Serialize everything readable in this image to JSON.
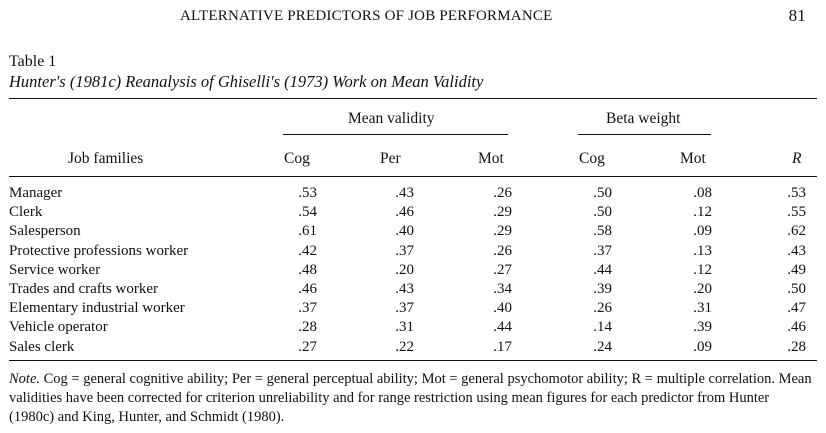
{
  "header": {
    "running_title": "ALTERNATIVE PREDICTORS OF JOB PERFORMANCE",
    "page_number": "81"
  },
  "table": {
    "label": "Table 1",
    "caption": "Hunter's (1981c) Reanalysis of Ghiselli's (1973) Work on Mean Validity",
    "group_headers": [
      "Mean validity",
      "Beta weight"
    ],
    "row_header": "Job families",
    "columns": [
      "Cog",
      "Per",
      "Mot",
      "Cog",
      "Mot",
      "R"
    ],
    "rows": [
      {
        "name": "Manager",
        "values": [
          ".53",
          ".43",
          ".26",
          ".50",
          ".08",
          ".53"
        ]
      },
      {
        "name": "Clerk",
        "values": [
          ".54",
          ".46",
          ".29",
          ".50",
          ".12",
          ".55"
        ]
      },
      {
        "name": "Salesperson",
        "values": [
          ".61",
          ".40",
          ".29",
          ".58",
          ".09",
          ".62"
        ]
      },
      {
        "name": "Protective professions worker",
        "values": [
          ".42",
          ".37",
          ".26",
          ".37",
          ".13",
          ".43"
        ]
      },
      {
        "name": "Service worker",
        "values": [
          ".48",
          ".20",
          ".27",
          ".44",
          ".12",
          ".49"
        ]
      },
      {
        "name": "Trades and crafts worker",
        "values": [
          ".46",
          ".43",
          ".34",
          ".39",
          ".20",
          ".50"
        ]
      },
      {
        "name": "Elementary industrial worker",
        "values": [
          ".37",
          ".37",
          ".40",
          ".26",
          ".31",
          ".47"
        ]
      },
      {
        "name": "Vehicle operator",
        "values": [
          ".28",
          ".31",
          ".44",
          ".14",
          ".39",
          ".46"
        ]
      },
      {
        "name": "Sales clerk",
        "values": [
          ".27",
          ".22",
          ".17",
          ".24",
          ".09",
          ".28"
        ]
      }
    ]
  },
  "note": {
    "label": "Note.",
    "text": " Cog = general cognitive ability; Per = general perceptual ability; Mot = general psychomotor ability; R = multiple correlation. Mean validities have been corrected for criterion unreliability and for range restriction using mean figures for each predictor from Hunter (1980c) and King, Hunter, and Schmidt (1980)."
  }
}
